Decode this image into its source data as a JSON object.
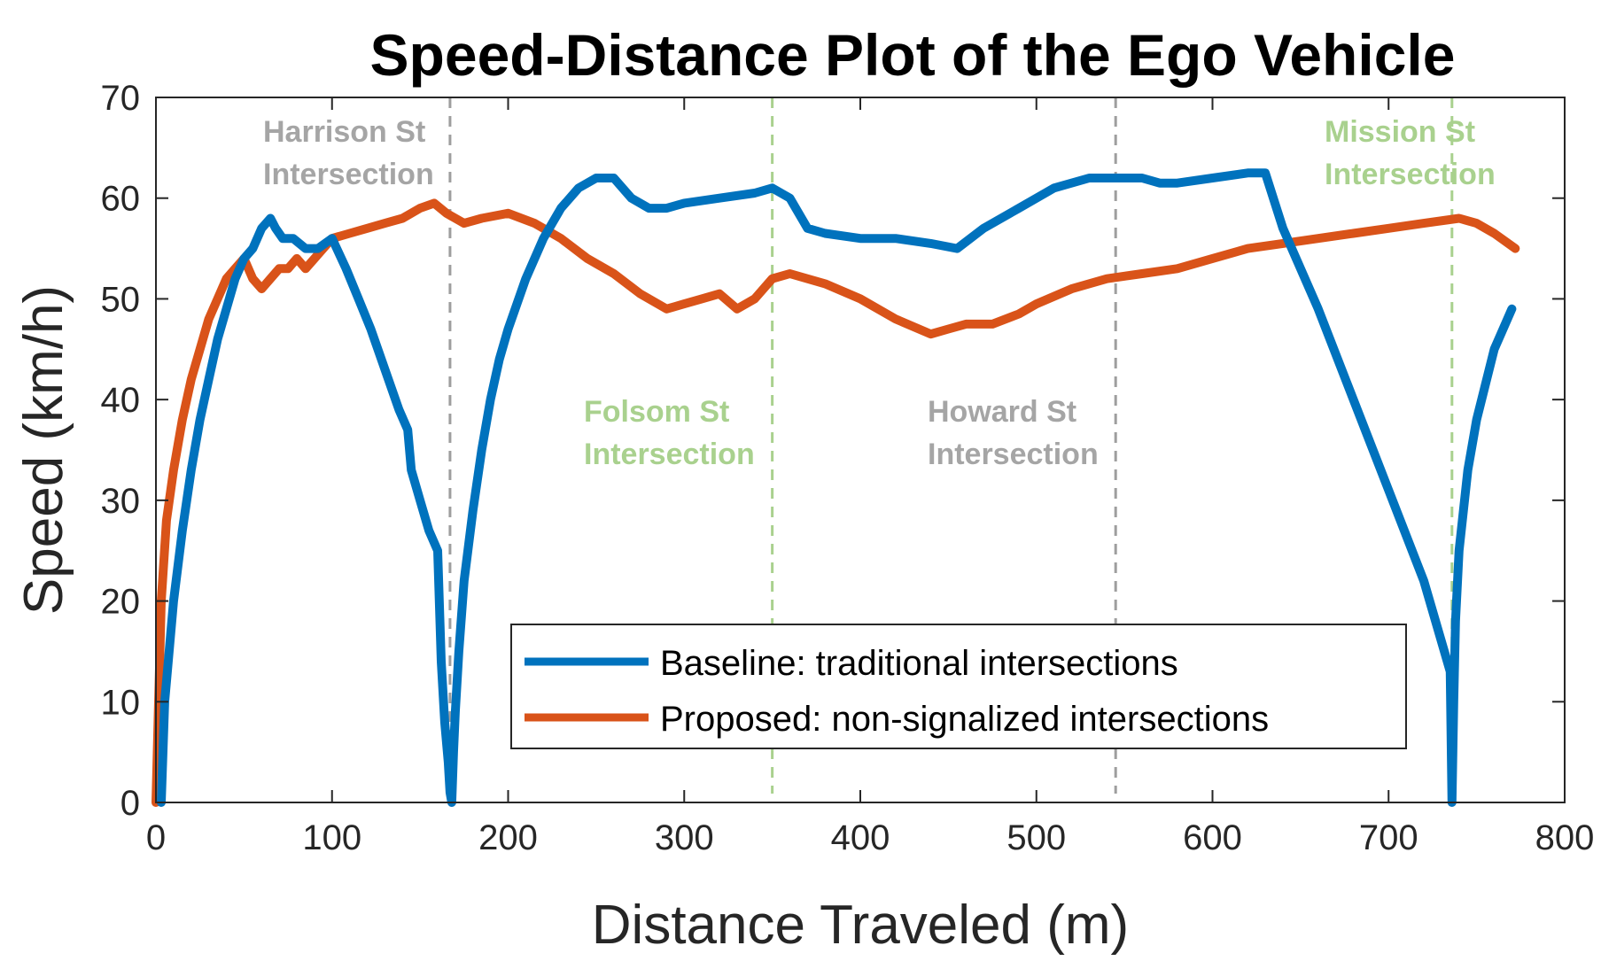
{
  "chart_data": {
    "type": "line",
    "title": "Speed-Distance Plot of the Ego Vehicle",
    "xlabel": "Distance Traveled (m)",
    "ylabel": "Speed (km/h)",
    "xlim": [
      0,
      800
    ],
    "ylim": [
      0,
      70
    ],
    "xticks": [
      0,
      100,
      200,
      300,
      400,
      500,
      600,
      700,
      800
    ],
    "yticks": [
      0,
      10,
      20,
      30,
      40,
      50,
      60,
      70
    ],
    "grid": false,
    "legend_position": "bottom-right",
    "series": [
      {
        "name": "Baseline: traditional intersections",
        "color": "#0072BD",
        "x": [
          3,
          5,
          10,
          15,
          20,
          25,
          30,
          35,
          40,
          45,
          50,
          55,
          60,
          65,
          68,
          72,
          78,
          85,
          92,
          100,
          108,
          115,
          122,
          130,
          138,
          143,
          145,
          150,
          155,
          160,
          162,
          164,
          166,
          167,
          168,
          169,
          170,
          172,
          175,
          180,
          185,
          190,
          195,
          200,
          210,
          220,
          230,
          240,
          250,
          260,
          270,
          280,
          290,
          300,
          320,
          340,
          350,
          360,
          370,
          380,
          400,
          420,
          440,
          455,
          470,
          490,
          510,
          530,
          550,
          560,
          570,
          580,
          600,
          620,
          630,
          640,
          660,
          680,
          700,
          720,
          735,
          736,
          737,
          738,
          740,
          745,
          750,
          760,
          770
        ],
        "values": [
          0,
          10,
          20,
          27,
          33,
          38,
          42,
          46,
          49,
          52,
          54,
          55,
          57,
          58,
          57,
          56,
          56,
          55,
          55,
          56,
          53,
          50,
          47,
          43,
          39,
          37,
          33,
          30,
          27,
          25,
          14,
          8,
          4,
          1,
          0,
          5,
          9,
          15,
          22,
          29,
          35,
          40,
          44,
          47,
          52,
          56,
          59,
          61,
          62,
          62,
          60,
          59,
          59,
          59.5,
          60,
          60.5,
          61,
          60,
          57,
          56.5,
          56,
          56,
          55.5,
          55,
          57,
          59,
          61,
          62,
          62,
          62,
          61.5,
          61.5,
          62,
          62.5,
          62.5,
          57,
          49,
          40,
          31,
          22,
          13,
          0,
          10,
          18,
          25,
          33,
          38,
          45,
          49
        ]
      },
      {
        "name": "Proposed: non-signalized intersections",
        "color": "#D95319",
        "x": [
          0,
          3,
          6,
          10,
          15,
          20,
          25,
          30,
          35,
          40,
          45,
          50,
          55,
          60,
          65,
          70,
          75,
          80,
          85,
          90,
          95,
          100,
          110,
          120,
          130,
          140,
          150,
          158,
          165,
          175,
          185,
          200,
          215,
          230,
          245,
          260,
          275,
          290,
          300,
          310,
          320,
          330,
          340,
          350,
          360,
          380,
          400,
          420,
          440,
          450,
          460,
          475,
          490,
          500,
          520,
          540,
          560,
          580,
          600,
          620,
          640,
          660,
          680,
          700,
          720,
          740,
          750,
          760,
          772
        ],
        "values": [
          0,
          20,
          28,
          33,
          38,
          42,
          45,
          48,
          50,
          52,
          53,
          54,
          52,
          51,
          52,
          53,
          53,
          54,
          53,
          54,
          55,
          56,
          56.5,
          57,
          57.5,
          58,
          59,
          59.5,
          58.5,
          57.5,
          58,
          58.5,
          57.5,
          56,
          54,
          52.5,
          50.5,
          49,
          49.5,
          50,
          50.5,
          49,
          50,
          52,
          52.5,
          51.5,
          50,
          48,
          46.5,
          47,
          47.5,
          47.5,
          48.5,
          49.5,
          51,
          52,
          52.5,
          53,
          54,
          55,
          55.5,
          56,
          56.5,
          57,
          57.5,
          58,
          57.5,
          56.5,
          55
        ]
      }
    ],
    "vlines": [
      {
        "x": 167,
        "color": "#9e9e9e",
        "label": [
          "Harrison St",
          "Intersection"
        ],
        "label_color": "#a5a5a5"
      },
      {
        "x": 350,
        "color": "#a9d18e",
        "label": [
          "Folsom St",
          "Intersection"
        ],
        "label_color": "#a9d18e"
      },
      {
        "x": 545,
        "color": "#9e9e9e",
        "label": [
          "Howard St",
          "Intersection"
        ],
        "label_color": "#a5a5a5"
      },
      {
        "x": 736,
        "color": "#a9d18e",
        "label": [
          "Mission St",
          "Intersection"
        ],
        "label_color": "#a9d18e"
      }
    ]
  }
}
